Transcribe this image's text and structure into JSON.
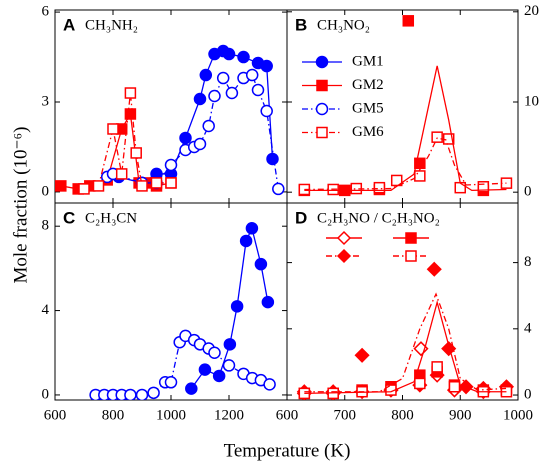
{
  "figure": {
    "ylabel": "Mole fraction (10⁻⁶)",
    "xlabel": "Temperature (K)"
  },
  "chart_data": [
    {
      "type": "scatter",
      "label": "A",
      "title": "CH₃NH₂",
      "xlim": [
        600,
        1400
      ],
      "xticks": [
        600,
        800,
        1000,
        1200
      ],
      "ylim": [
        -0.37,
        6.07
      ],
      "yticks": [
        0,
        3,
        6
      ],
      "yaxis_side": "left",
      "xtick_labels": false,
      "series": [
        {
          "color": "#0000ff",
          "marker": "circle",
          "filled": true,
          "line": "solid",
          "x": [
            820,
            900,
            950,
            1000,
            1050,
            1100,
            1120,
            1150,
            1180,
            1200,
            1250,
            1300,
            1330,
            1350
          ],
          "values": [
            0.5,
            0.3,
            0.6,
            0.6,
            1.8,
            3.1,
            3.9,
            4.6,
            4.7,
            4.6,
            4.5,
            4.3,
            4.2,
            1.1
          ]
        },
        {
          "color": "#ff0000",
          "marker": "square",
          "filled": true,
          "line": "solid",
          "x": [
            620,
            680,
            720,
            780,
            830,
            860,
            890,
            920,
            950,
            1000
          ],
          "values": [
            0.2,
            0.1,
            0.2,
            0.4,
            2.1,
            2.6,
            0.3,
            0.3,
            0.2,
            0.3
          ]
        },
        {
          "color": "#0000ff",
          "marker": "circle",
          "filled": false,
          "line": "dashdot",
          "x": [
            780,
            800,
            900,
            950,
            1000,
            1050,
            1080,
            1100,
            1130,
            1150,
            1180,
            1210,
            1250,
            1280,
            1300,
            1330,
            1370
          ],
          "values": [
            0.5,
            0.6,
            0.3,
            0.3,
            0.9,
            1.4,
            1.5,
            1.6,
            2.2,
            3.2,
            3.8,
            3.3,
            3.8,
            3.9,
            3.4,
            2.7,
            0.1
          ]
        },
        {
          "color": "#ff0000",
          "marker": "square",
          "filled": false,
          "line": "dashdot",
          "x": [
            700,
            750,
            800,
            830,
            860,
            880,
            900,
            950,
            1000
          ],
          "values": [
            0.1,
            0.2,
            2.1,
            0.6,
            3.3,
            1.3,
            0.2,
            0.3,
            0.3
          ]
        }
      ]
    },
    {
      "type": "scatter",
      "label": "B",
      "title": "CH₃NO₂",
      "xlim": [
        600,
        1000
      ],
      "xticks": [
        600,
        700,
        800,
        900,
        1000
      ],
      "ylim": [
        -1.2,
        20.2
      ],
      "yticks": [
        0,
        10,
        20
      ],
      "yaxis_side": "right",
      "xtick_labels": false,
      "legend": [
        {
          "name": "GM1",
          "color": "#0000ff",
          "marker": "circle",
          "filled": true,
          "line": "solid"
        },
        {
          "name": "GM2",
          "color": "#ff0000",
          "marker": "square",
          "filled": true,
          "line": "solid"
        },
        {
          "name": "GM5",
          "color": "#0000ff",
          "marker": "circle",
          "filled": false,
          "line": "dashdot"
        },
        {
          "name": "GM6",
          "color": "#ff0000",
          "marker": "square",
          "filled": false,
          "line": "dashdot"
        }
      ],
      "series": [
        {
          "color": "#ff0000",
          "marker": "square",
          "filled": true,
          "line": "none",
          "x": [
            630,
            700,
            760,
            810,
            830,
            940
          ],
          "values": [
            0.2,
            0.2,
            0.3,
            19,
            3.2,
            0.2
          ]
        },
        {
          "color": "#ff0000",
          "marker": "square",
          "filled": false,
          "line": "none",
          "x": [
            630,
            680,
            720,
            760,
            790,
            830,
            860,
            880,
            900,
            940,
            980
          ],
          "values": [
            0.3,
            0.3,
            0.4,
            0.5,
            1.3,
            1.8,
            6.1,
            5.9,
            0.5,
            0.6,
            1.0
          ]
        },
        {
          "color": "#ff0000",
          "marker": "none",
          "line": "solid",
          "x": [
            630,
            780,
            820,
            840,
            860,
            880,
            900,
            920,
            980
          ],
          "values": [
            0.2,
            0.2,
            2,
            8,
            14,
            8,
            1,
            0.2,
            0.3
          ]
        },
        {
          "color": "#ff0000",
          "marker": "none",
          "line": "dashdot",
          "x": [
            630,
            780,
            820,
            845,
            860,
            875,
            890,
            910,
            980
          ],
          "values": [
            0.3,
            0.4,
            1.5,
            4,
            6,
            5.8,
            3,
            0.8,
            1.0
          ]
        }
      ]
    },
    {
      "type": "scatter",
      "label": "C",
      "title": "C₂H₃CN",
      "xlim": [
        600,
        1400
      ],
      "xticks": [
        600,
        800,
        1000,
        1200
      ],
      "ylim": [
        -0.24,
        9.1
      ],
      "yticks": [
        0,
        4,
        8
      ],
      "yaxis_side": "left",
      "xtick_labels": true,
      "series": [
        {
          "color": "#0000ff",
          "marker": "circle",
          "filled": true,
          "line": "solid",
          "x": [
            1070,
            1117,
            1166,
            1203,
            1228,
            1259,
            1279,
            1310,
            1334
          ],
          "values": [
            0.3,
            1.2,
            0.9,
            2.4,
            4.2,
            7.3,
            7.9,
            6.2,
            4.4
          ]
        },
        {
          "color": "#0000ff",
          "marker": "circle",
          "filled": false,
          "line": "dashdot",
          "x": [
            740,
            770,
            800,
            830,
            860,
            900,
            940,
            980,
            1000,
            1030,
            1050,
            1080,
            1100,
            1130,
            1150,
            1200,
            1250,
            1280,
            1310,
            1340
          ],
          "values": [
            0,
            0,
            0,
            0,
            0,
            0,
            0.1,
            0.6,
            0.6,
            2.5,
            2.8,
            2.6,
            2.4,
            2.2,
            2.0,
            1.4,
            1.0,
            0.8,
            0.7,
            0.5
          ]
        }
      ]
    },
    {
      "type": "scatter",
      "label": "D",
      "title": "C₂H₃NO / C₂H₃NO₂",
      "xlim": [
        600,
        1000
      ],
      "xticks": [
        600,
        700,
        800,
        900,
        1000
      ],
      "ylim": [
        -0.3,
        11.6
      ],
      "yticks": [
        0,
        4,
        8
      ],
      "yaxis_side": "right",
      "xtick_labels": true,
      "series": [
        {
          "color": "#ff0000",
          "marker": "diamond",
          "filled": true,
          "line": "none",
          "x": [
            630,
            680,
            730,
            780,
            830,
            855,
            880,
            910,
            940,
            980
          ],
          "values": [
            0.2,
            0.2,
            2.4,
            0.3,
            0.6,
            7.6,
            2.8,
            0.5,
            0.4,
            0.5
          ]
        },
        {
          "color": "#ff0000",
          "marker": "diamond",
          "filled": false,
          "line": "none",
          "x": [
            630,
            680,
            730,
            780,
            832,
            860,
            890,
            940
          ],
          "values": [
            0.1,
            0.1,
            0.2,
            0.3,
            2.8,
            1.2,
            0.3,
            0.2
          ]
        },
        {
          "color": "#ff0000",
          "marker": "square",
          "filled": true,
          "line": "none",
          "x": [
            630,
            680,
            730,
            780,
            830,
            860,
            890,
            940,
            980
          ],
          "values": [
            0.1,
            0.1,
            0.3,
            0.5,
            1.2,
            1.4,
            0.6,
            0.3,
            0.3
          ]
        },
        {
          "color": "#ff0000",
          "marker": "square",
          "filled": false,
          "line": "none",
          "x": [
            630,
            680,
            730,
            780,
            830,
            860,
            890,
            940,
            980
          ],
          "values": [
            0.1,
            0.1,
            0.2,
            0.3,
            0.7,
            1.7,
            0.5,
            0.2,
            0.2
          ]
        },
        {
          "color": "#ff0000",
          "marker": "none",
          "line": "solid",
          "x": [
            630,
            780,
            820,
            840,
            860,
            880,
            900,
            930,
            980
          ],
          "values": [
            0.1,
            0.2,
            0.8,
            3,
            5.6,
            3,
            0.6,
            0.2,
            0.2
          ]
        },
        {
          "color": "#ff0000",
          "marker": "none",
          "line": "dashdot",
          "x": [
            630,
            760,
            800,
            830,
            858,
            880,
            900,
            930,
            980
          ],
          "values": [
            0.2,
            0.2,
            1,
            4,
            6.1,
            4,
            1,
            0.3,
            0.4
          ]
        }
      ]
    }
  ]
}
